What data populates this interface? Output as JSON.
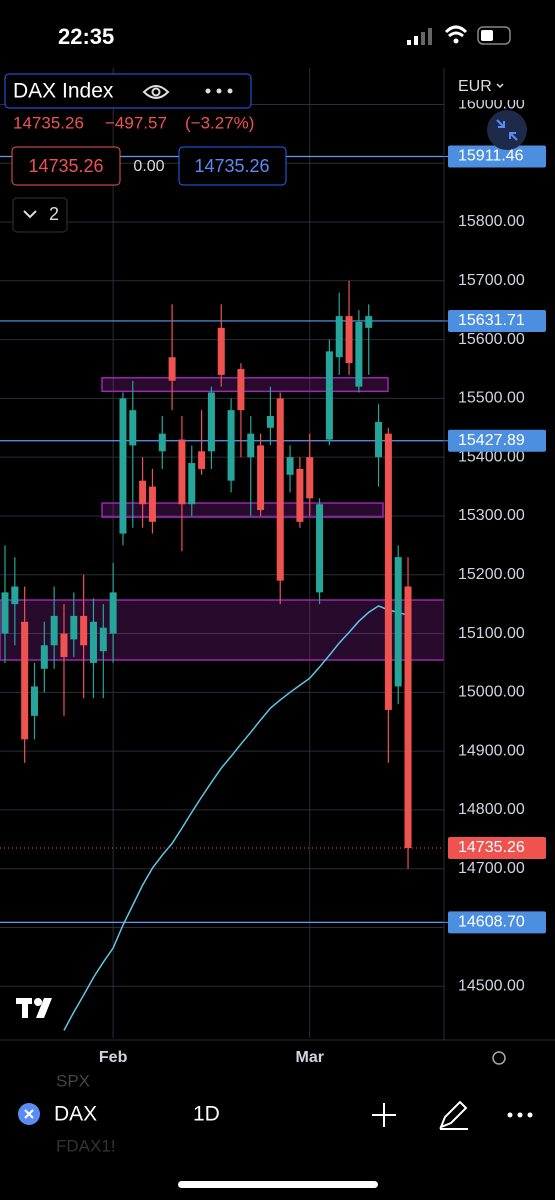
{
  "status_bar": {
    "time": "22:35"
  },
  "header": {
    "symbol": "DAX Index",
    "price": "14735.26",
    "change": "−497.57",
    "change_pct": "(−3.27%)",
    "sell": "14735.26",
    "spread": "0.00",
    "buy": "14735.26",
    "indicators_count": "2",
    "currency": "EUR"
  },
  "chart_data": {
    "type": "candlestick",
    "categories": [
      null,
      null,
      null,
      null,
      null,
      null,
      null,
      null,
      null,
      null,
      null,
      "Feb",
      null,
      null,
      null,
      null,
      null,
      null,
      null,
      null,
      null,
      null,
      null,
      null,
      null,
      null,
      null,
      null,
      null,
      null,
      null,
      "Mar",
      null,
      null,
      null,
      null,
      null,
      null,
      null,
      null,
      null,
      null
    ],
    "open": [
      15100,
      15150,
      15120,
      14960,
      15040,
      15080,
      15100,
      15090,
      15130,
      15050,
      15070,
      15100,
      15270,
      15420,
      15360,
      15350,
      15410,
      15570,
      15430,
      15320,
      15410,
      15410,
      15620,
      15360,
      15550,
      15400,
      15420,
      15450,
      15500,
      15370,
      15380,
      15400,
      15170,
      15430,
      15570,
      15640,
      15520,
      15620,
      15400,
      15440,
      15010,
      15180
    ],
    "high": [
      15250,
      15230,
      15180,
      15050,
      15120,
      15180,
      15150,
      15170,
      15200,
      15160,
      15150,
      15220,
      15510,
      15530,
      15400,
      15380,
      15470,
      15660,
      15470,
      15420,
      15480,
      15520,
      15660,
      15500,
      15560,
      15470,
      15440,
      15520,
      15510,
      15420,
      15400,
      15440,
      15330,
      15600,
      15680,
      15700,
      15650,
      15660,
      15490,
      15450,
      15250,
      15230
    ],
    "low": [
      15050,
      15080,
      14880,
      14920,
      15000,
      15040,
      14960,
      15060,
      14990,
      14990,
      14990,
      15050,
      15250,
      15280,
      15280,
      15270,
      15380,
      15480,
      15240,
      15300,
      15370,
      15380,
      15520,
      15340,
      15400,
      15300,
      15300,
      15420,
      15150,
      15340,
      15280,
      15300,
      15150,
      15420,
      15540,
      15540,
      15510,
      15540,
      15350,
      14880,
      14980,
      14700
    ],
    "close": [
      15170,
      15180,
      14920,
      15010,
      15080,
      15130,
      15060,
      15130,
      15080,
      15120,
      15110,
      15170,
      15500,
      15480,
      15320,
      15290,
      15440,
      15530,
      15320,
      15390,
      15380,
      15510,
      15540,
      15480,
      15480,
      15440,
      15310,
      15470,
      15190,
      15400,
      15290,
      15330,
      15320,
      15580,
      15640,
      15560,
      15630,
      15640,
      15460,
      14970,
      15230,
      14735.26
    ],
    "ma": {
      "color": "#5ec8e6",
      "values": [
        null,
        null,
        null,
        null,
        null,
        null,
        14425,
        14456,
        14485,
        14515,
        14541,
        14565,
        14604,
        14638,
        14672,
        14701,
        14723,
        14743,
        14769,
        14796,
        14822,
        14847,
        14871,
        14891,
        14912,
        14932,
        14953,
        14973,
        14987,
        15000,
        15012,
        15024,
        15043,
        15063,
        15084,
        15102,
        15121,
        15136,
        15147,
        15140,
        15136,
        15131
      ]
    },
    "up_color": "#26a69a",
    "down_color": "#ef5350",
    "ylim": [
      14412,
      16062
    ],
    "yticks": [
      {
        "value": 14500,
        "label": "14500.00"
      },
      {
        "value": 14600,
        "label": "14600.00"
      },
      {
        "value": 14700,
        "label": "14700.00"
      },
      {
        "value": 14800,
        "label": "14800.00"
      },
      {
        "value": 14900,
        "label": "14900.00"
      },
      {
        "value": 15000,
        "label": "15000.00"
      },
      {
        "value": 15100,
        "label": "15100.00"
      },
      {
        "value": 15200,
        "label": "15200.00"
      },
      {
        "value": 15300,
        "label": "15300.00"
      },
      {
        "value": 15400,
        "label": "15400.00"
      },
      {
        "value": 15500,
        "label": "15500.00"
      },
      {
        "value": 15600,
        "label": "15600.00"
      },
      {
        "value": 15700,
        "label": "15700.00"
      },
      {
        "value": 15800,
        "label": "15800.00"
      },
      {
        "value": 15900,
        "label": "15900.00"
      },
      {
        "value": 16000,
        "label": "16000.00"
      }
    ],
    "levels": [
      15911.46,
      15631.71,
      15427.89,
      {
        "value": 14608.7,
        "label": "14608.70"
      }
    ],
    "level_color": "#5b9cf5",
    "zones": [
      {
        "low": 15512,
        "high": 15535
      },
      {
        "low": 15298,
        "high": 15322
      },
      {
        "low": 15055,
        "high": 15157
      }
    ],
    "zone_color": "#9c27b0",
    "last_price": 14735.26,
    "grid": true
  },
  "toolbar": {
    "prev_symbol": "SPX",
    "symbol": "DAX",
    "interval": "1D",
    "next_symbol": "FDAX1!"
  }
}
